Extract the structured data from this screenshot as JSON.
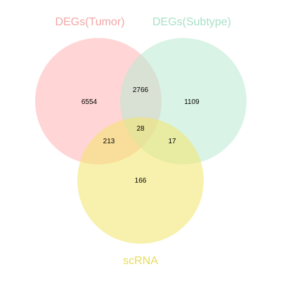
{
  "sets": [
    {
      "name": "DEGs(Tumor)",
      "color": "#ffb3b3",
      "label_color": "#f4a6a6"
    },
    {
      "name": "DEGs(Subtype)",
      "color": "#b9ead4",
      "label_color": "#a9e1c8"
    },
    {
      "name": "scRNA",
      "color": "#f2e66a",
      "label_color": "#e8dc5a"
    }
  ],
  "regions": {
    "tumor_only": "6554",
    "tumor_subtype": "2766",
    "subtype_only": "1109",
    "all_three": "28",
    "tumor_scrna": "213",
    "subtype_scrna": "17",
    "scrna_only": "166"
  }
}
